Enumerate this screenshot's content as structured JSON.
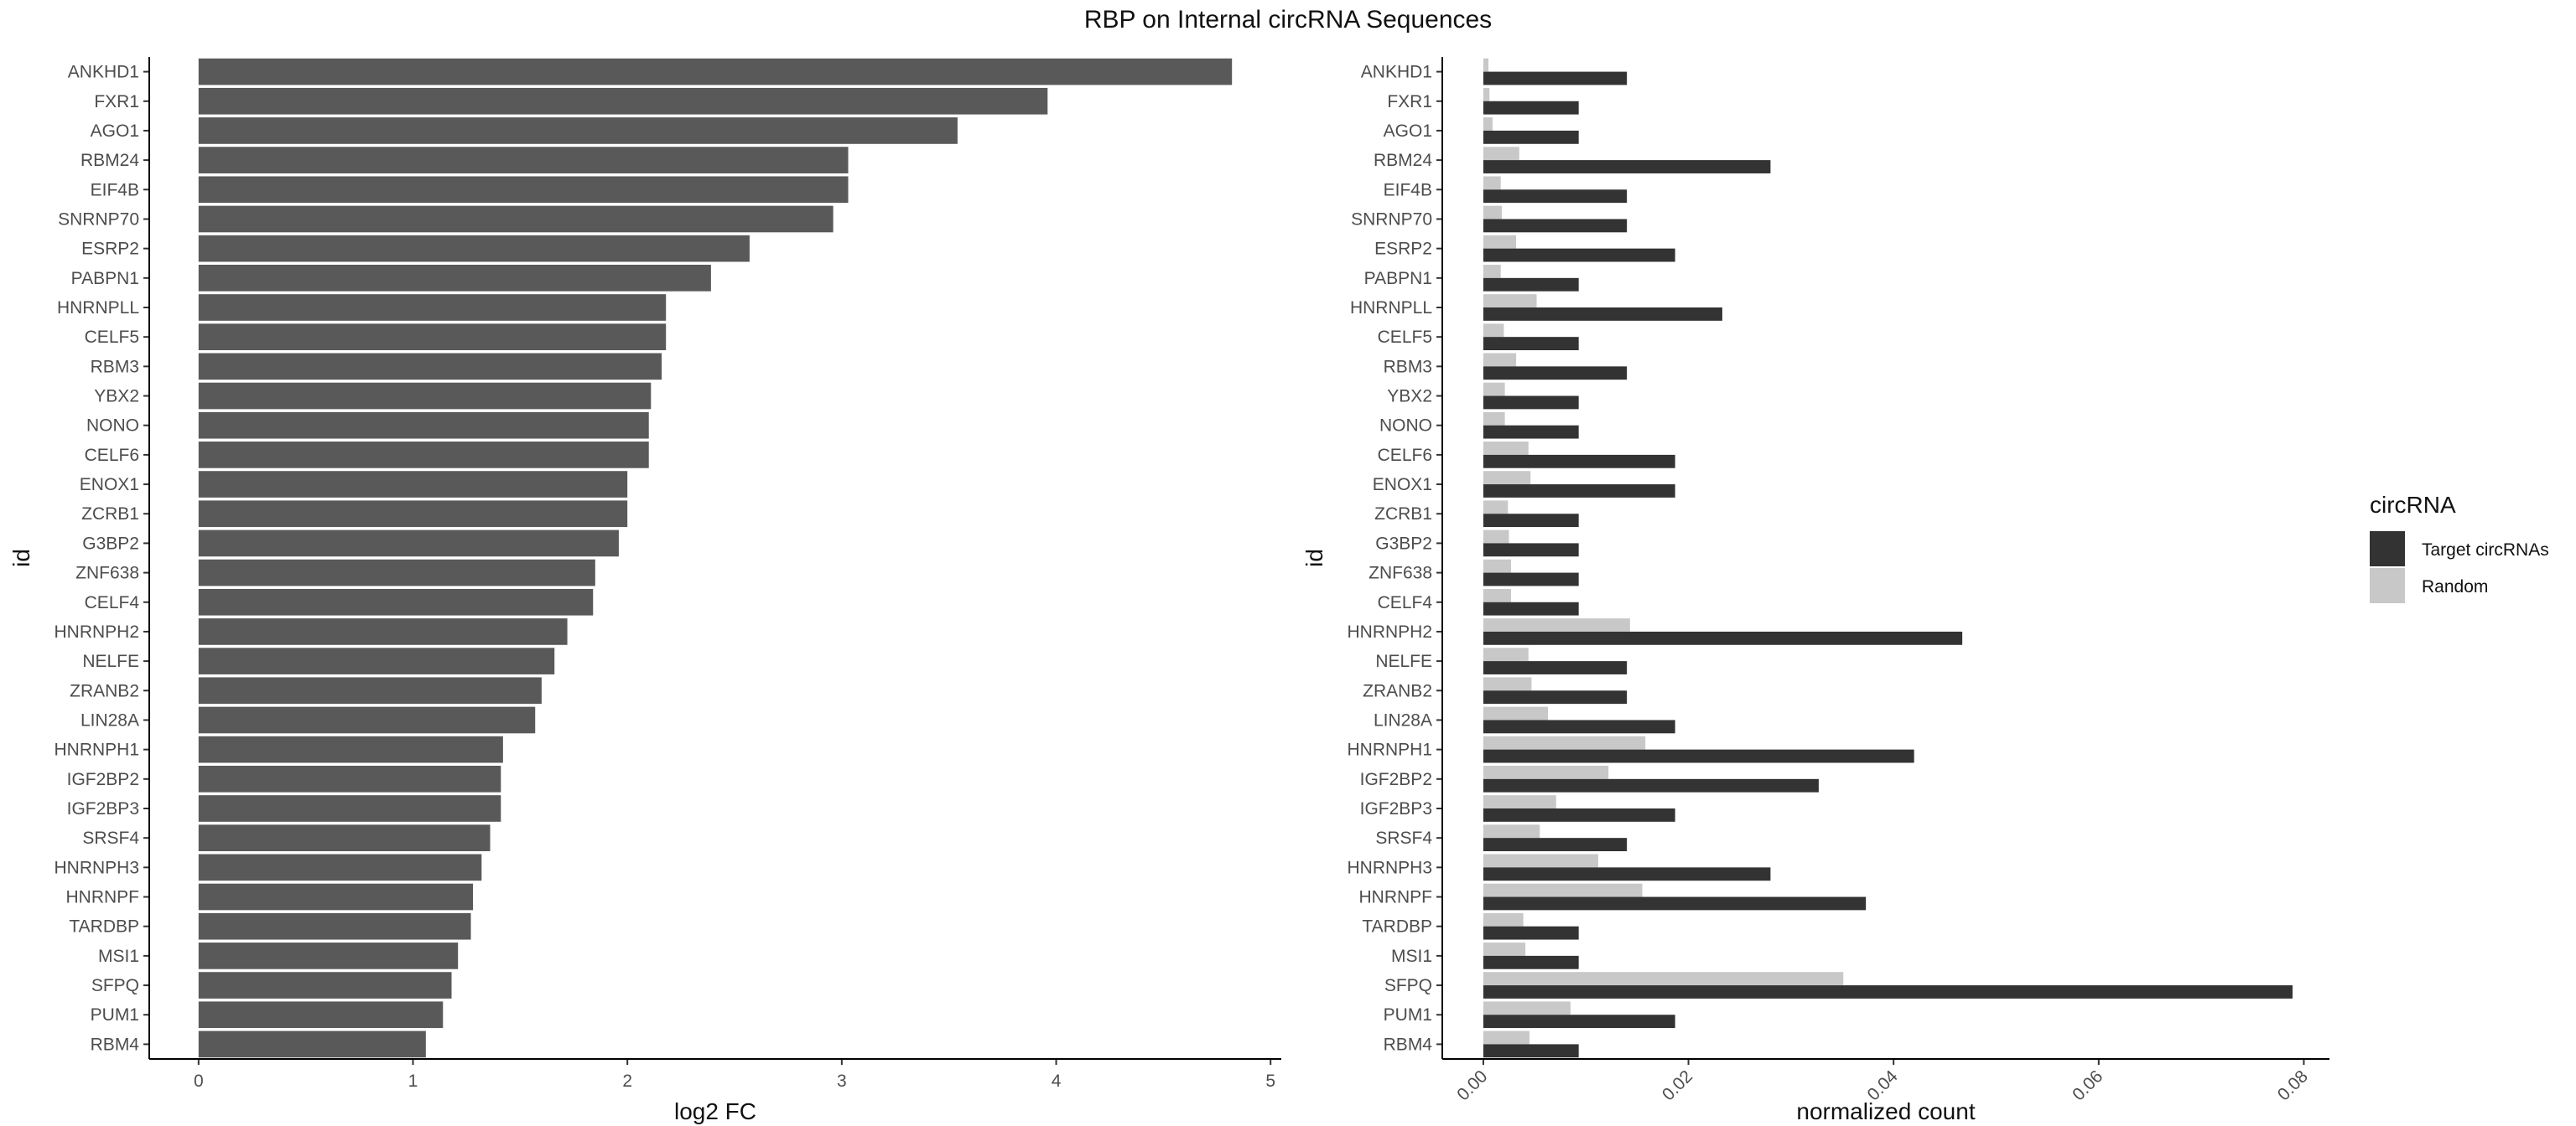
{
  "title": "RBP on Internal circRNA Sequences",
  "chart_data": [
    {
      "type": "bar",
      "orientation": "horizontal",
      "xlabel": "log2 FC",
      "ylabel": "id",
      "xlim": [
        -0.23,
        5.05
      ],
      "xticks": [
        0,
        1,
        2,
        3,
        4,
        5
      ],
      "xtick_labels": [
        "0",
        "1",
        "2",
        "3",
        "4",
        "5"
      ],
      "bar_color": "#595959",
      "grid": false,
      "categories": [
        "ANKHD1",
        "FXR1",
        "AGO1",
        "RBM24",
        "EIF4B",
        "SNRNP70",
        "ESRP2",
        "PABPN1",
        "HNRNPLL",
        "CELF5",
        "RBM3",
        "YBX2",
        "NONO",
        "CELF6",
        "ENOX1",
        "ZCRB1",
        "G3BP2",
        "ZNF638",
        "CELF4",
        "HNRNPH2",
        "NELFE",
        "ZRANB2",
        "LIN28A",
        "HNRNPH1",
        "IGF2BP2",
        "IGF2BP3",
        "SRSF4",
        "HNRNPH3",
        "HNRNPF",
        "TARDBP",
        "MSI1",
        "SFPQ",
        "PUM1",
        "RBM4"
      ],
      "values": [
        4.82,
        3.96,
        3.54,
        3.03,
        3.03,
        2.96,
        2.57,
        2.39,
        2.18,
        2.18,
        2.16,
        2.11,
        2.1,
        2.1,
        2.0,
        2.0,
        1.96,
        1.85,
        1.84,
        1.72,
        1.66,
        1.6,
        1.57,
        1.42,
        1.41,
        1.41,
        1.36,
        1.32,
        1.28,
        1.27,
        1.21,
        1.18,
        1.14,
        1.06
      ]
    },
    {
      "type": "bar",
      "orientation": "horizontal",
      "grouped": true,
      "xlabel": "normalized count",
      "ylabel": "id",
      "xlim": [
        -0.004,
        0.0825
      ],
      "xticks": [
        0,
        0.02,
        0.04,
        0.06,
        0.08
      ],
      "xtick_labels": [
        "0.00",
        "0.02",
        "0.04",
        "0.06",
        "0.08"
      ],
      "grid": false,
      "legend": {
        "title": "circRNA",
        "position": "right"
      },
      "categories": [
        "ANKHD1",
        "FXR1",
        "AGO1",
        "RBM24",
        "EIF4B",
        "SNRNP70",
        "ESRP2",
        "PABPN1",
        "HNRNPLL",
        "CELF5",
        "RBM3",
        "YBX2",
        "NONO",
        "CELF6",
        "ENOX1",
        "ZCRB1",
        "G3BP2",
        "ZNF638",
        "CELF4",
        "HNRNPH2",
        "NELFE",
        "ZRANB2",
        "LIN28A",
        "HNRNPH1",
        "IGF2BP2",
        "IGF2BP3",
        "SRSF4",
        "HNRNPH3",
        "HNRNPF",
        "TARDBP",
        "MSI1",
        "SFPQ",
        "PUM1",
        "RBM4"
      ],
      "series": [
        {
          "name": "Target circRNAs",
          "color": "#333333",
          "values": [
            0.014,
            0.0093,
            0.0093,
            0.028,
            0.014,
            0.014,
            0.0187,
            0.0093,
            0.0233,
            0.0093,
            0.014,
            0.0093,
            0.0093,
            0.0187,
            0.0187,
            0.0093,
            0.0093,
            0.0093,
            0.0093,
            0.0467,
            0.014,
            0.014,
            0.0187,
            0.042,
            0.0327,
            0.0187,
            0.014,
            0.028,
            0.0373,
            0.0093,
            0.0093,
            0.0789,
            0.0187,
            0.0093
          ]
        },
        {
          "name": "Random",
          "color": "#c8c8c8",
          "values": [
            0.0005,
            0.0006,
            0.0009,
            0.0035,
            0.0017,
            0.0018,
            0.0032,
            0.0017,
            0.0052,
            0.002,
            0.0032,
            0.0021,
            0.0021,
            0.0044,
            0.0046,
            0.0024,
            0.0025,
            0.0027,
            0.0027,
            0.0143,
            0.0044,
            0.0047,
            0.0063,
            0.0158,
            0.0122,
            0.0071,
            0.0055,
            0.0112,
            0.0155,
            0.0039,
            0.0041,
            0.0351,
            0.0085,
            0.0045
          ]
        }
      ]
    }
  ]
}
